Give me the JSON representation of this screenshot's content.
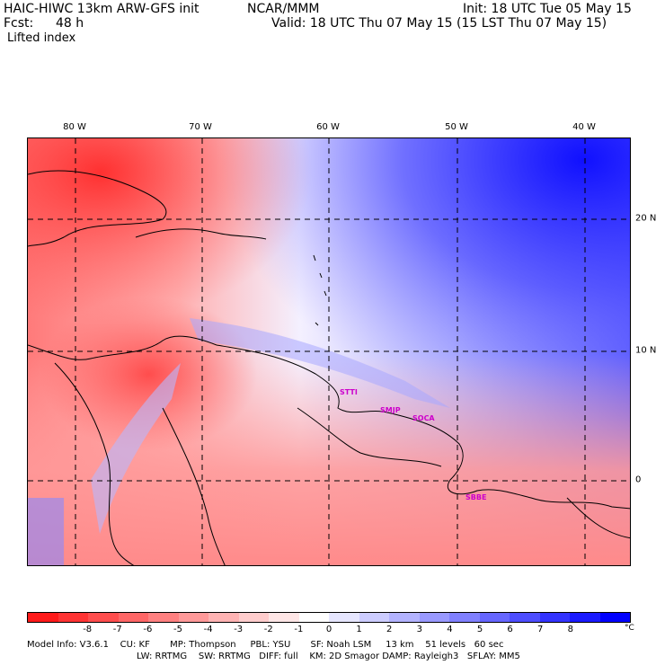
{
  "header": {
    "model": "HAIC-HIWC 13km ARW-GFS init",
    "org": "NCAR/MMM",
    "fcst_label": "Fcst:",
    "fcst_value": "48 h",
    "init": "Init: 18 UTC Tue 05 May 15",
    "valid": "Valid: 18 UTC Thu 07 May 15 (15 LST Thu 07 May 15)",
    "field": "Lifted index"
  },
  "map": {
    "lon_labels": [
      "80 W",
      "70 W",
      "60 W",
      "50 W",
      "40 W"
    ],
    "lat_labels": [
      "20 N",
      "10 N",
      "0"
    ],
    "stations": [
      "STTI",
      "SMJP",
      "SOCA",
      "SBBE"
    ]
  },
  "colorbar": {
    "colors": [
      "#ff1a1a",
      "#ff3333",
      "#ff4d4d",
      "#ff6666",
      "#ff8080",
      "#ff9999",
      "#ffb3b3",
      "#ffcccc",
      "#ffe6e6",
      "#ffffff",
      "#e6e6ff",
      "#ccccff",
      "#b3b3ff",
      "#9999ff",
      "#8080ff",
      "#6666ff",
      "#4d4dff",
      "#3333ff",
      "#1a1aff",
      "#0000ff"
    ],
    "labels": [
      "-8",
      "-7",
      "-6",
      "-5",
      "-4",
      "-3",
      "-2",
      "-1",
      "0",
      "1",
      "2",
      "3",
      "4",
      "5",
      "6",
      "7",
      "8"
    ],
    "unit": "°C"
  },
  "info": {
    "line1": "Model Info: V3.6.1    CU: KF       MP: Thompson     PBL: YSU       SF: Noah LSM     13 km    51 levels   60 sec",
    "line2": "LW: RRTMG    SW: RRTMG   DIFF: full    KM: 2D Smagor DAMP: Rayleigh3   SFLAY: MM5"
  }
}
